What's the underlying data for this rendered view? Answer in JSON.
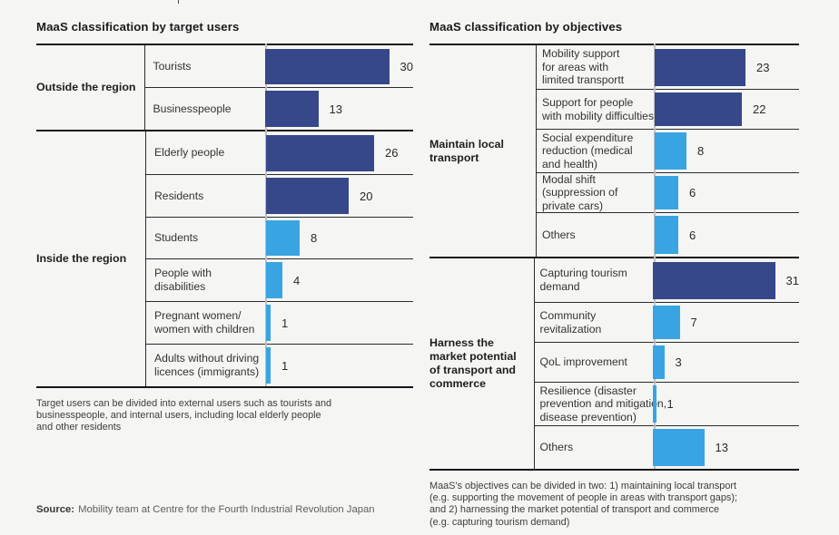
{
  "colors": {
    "dark_blue": "#36488A",
    "light_blue": "#38A5E2",
    "background": "#F5F5F3",
    "rule_thick": "#161616",
    "rule_thin": "#2B2B2B",
    "baseline_gray": "#BFBFBF"
  },
  "source": {
    "label": "Source:",
    "text": "Mobility team at Centre for the Fourth Industrial Revolution Japan"
  },
  "chart_data": [
    {
      "type": "bar",
      "orientation": "horizontal",
      "title": "MaaS classification by target users",
      "xlabel": "",
      "ylabel": "",
      "xlim": [
        0,
        33
      ],
      "grid": false,
      "legend": "none",
      "categories": [
        "Tourists",
        "Businesspeople",
        "Elderly people",
        "Residents",
        "Students",
        "People with disabilities",
        "Pregnant women/ women with children",
        "Adults without driving licences (immigrants)"
      ],
      "values": [
        30,
        13,
        26,
        20,
        8,
        4,
        1,
        1
      ],
      "groups": [
        {
          "label": "Outside the region",
          "label_lines": [
            "Outside the region"
          ],
          "rows": [
            {
              "label": "Tourists",
              "lines": [
                "Tourists"
              ],
              "value": 30,
              "color": "dark_blue"
            },
            {
              "label": "Businesspeople",
              "lines": [
                "Businesspeople"
              ],
              "value": 13,
              "color": "dark_blue"
            }
          ]
        },
        {
          "label": "Inside the region",
          "label_lines": [
            "Inside the region"
          ],
          "rows": [
            {
              "label": "Elderly people",
              "lines": [
                "Elderly people"
              ],
              "value": 26,
              "color": "dark_blue"
            },
            {
              "label": "Residents",
              "lines": [
                "Residents"
              ],
              "value": 20,
              "color": "dark_blue"
            },
            {
              "label": "Students",
              "lines": [
                "Students"
              ],
              "value": 8,
              "color": "light_blue"
            },
            {
              "label": "People with disabilities",
              "lines": [
                "People with",
                "disabilities"
              ],
              "value": 4,
              "color": "light_blue"
            },
            {
              "label": "Pregnant women/ women with children",
              "lines": [
                "Pregnant women/",
                "women with children"
              ],
              "value": 1,
              "color": "light_blue"
            },
            {
              "label": "Adults without driving licences (immigrants)",
              "lines": [
                "Adults without driving",
                "licences (immigrants)"
              ],
              "value": 1,
              "color": "light_blue"
            }
          ]
        }
      ],
      "note_lines": [
        "Target users can be divided into external users such as tourists and",
        "businesspeople, and internal users, including local elderly people",
        "and other residents"
      ]
    },
    {
      "type": "bar",
      "orientation": "horizontal",
      "title": "MaaS classification by objectives",
      "xlabel": "",
      "ylabel": "",
      "xlim": [
        0,
        34
      ],
      "grid": false,
      "legend": "none",
      "categories": [
        "Mobility support for areas with limited transportt",
        "Support for people with mobility difficulties",
        "Social expenditure reduction (medical and health)",
        "Modal shift (suppression of private cars)",
        "Others",
        "Capturing tourism demand",
        "Community revitalization",
        "QoL improvement",
        "Resilience (disaster prevention and mitigation, disease prevention)",
        "Others"
      ],
      "values": [
        23,
        22,
        8,
        6,
        6,
        31,
        7,
        3,
        1,
        13
      ],
      "groups": [
        {
          "label": "Maintain local transport",
          "label_lines": [
            "Maintain local",
            "transport"
          ],
          "rows": [
            {
              "label": "Mobility support for areas with limited transportt",
              "lines": [
                "Mobility support",
                "for areas with",
                "limited transportt"
              ],
              "value": 23,
              "color": "dark_blue"
            },
            {
              "label": "Support for people with mobility difficulties",
              "lines": [
                "Support for people",
                "with mobility difficulties"
              ],
              "value": 22,
              "color": "dark_blue"
            },
            {
              "label": "Social expenditure reduction (medical and health)",
              "lines": [
                "Social expenditure",
                "reduction (medical",
                "and health)"
              ],
              "value": 8,
              "color": "light_blue"
            },
            {
              "label": "Modal shift (suppression of private cars)",
              "lines": [
                "Modal shift",
                "(suppression of",
                "private cars)"
              ],
              "value": 6,
              "color": "light_blue"
            },
            {
              "label": "Others",
              "lines": [
                "Others"
              ],
              "value": 6,
              "color": "light_blue"
            }
          ]
        },
        {
          "label": "Harness the market potential of transport and commerce",
          "label_lines": [
            "Harness the",
            "market potential",
            "of transport and",
            "commerce"
          ],
          "rows": [
            {
              "label": "Capturing tourism demand",
              "lines": [
                "Capturing tourism",
                "demand"
              ],
              "value": 31,
              "color": "dark_blue"
            },
            {
              "label": "Community revitalization",
              "lines": [
                "Community",
                "revitalization"
              ],
              "value": 7,
              "color": "light_blue"
            },
            {
              "label": "QoL improvement",
              "lines": [
                "QoL improvement"
              ],
              "value": 3,
              "color": "light_blue"
            },
            {
              "label": "Resilience (disaster prevention and mitigation, disease prevention)",
              "lines": [
                "Resilience (disaster",
                "prevention and mitigation,",
                "disease prevention)"
              ],
              "value": 1,
              "color": "light_blue"
            },
            {
              "label": "Others",
              "lines": [
                "Others"
              ],
              "value": 13,
              "color": "light_blue"
            }
          ]
        }
      ],
      "note_lines": [
        "MaaS's objectives can be divided in two: 1) maintaining local transport",
        "(e.g. supporting the movement of people in areas with transport gaps);",
        "and 2) harnessing the market potential of transport and commerce",
        "(e.g. capturing tourism demand)"
      ]
    }
  ]
}
